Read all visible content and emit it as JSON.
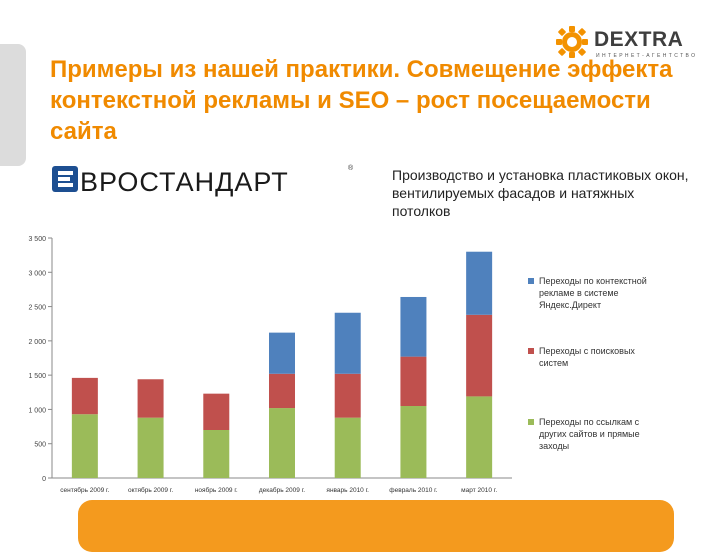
{
  "header": {
    "logo_name": "DEXTRA",
    "logo_tagline": "ИНТЕРНЕТ-АГЕНТСТВО",
    "title": "Примеры из нашей практики. Совмещение эффекта контекстной рекламы и SEO – рост посещаемости сайта"
  },
  "client": {
    "name": "ВРОСТАНДАРТ",
    "description": "Производство и установка пластиковых окон, вентилируемых фасадов и натяжных потолков"
  },
  "colors": {
    "accent": "#f08a00",
    "bar_organic": "#9bbb59",
    "bar_search": "#c0504d",
    "bar_context": "#4f81bd"
  },
  "chart_data": {
    "type": "bar",
    "stacked": true,
    "categories": [
      "сентябрь 2009 г.",
      "октябрь 2009 г.",
      "ноябрь 2009 г.",
      "декабрь 2009 г.",
      "январь 2010 г.",
      "февраль 2010 г.",
      "март 2010 г."
    ],
    "y_ticks": [
      "0",
      "500",
      "1 000",
      "1 500",
      "2 000",
      "2 500",
      "3 000",
      "3 500"
    ],
    "ylim": [
      0,
      3500
    ],
    "grid": false,
    "legend_position": "right",
    "series": [
      {
        "name": "Переходы по ссылкам с других сайтов и прямые заходы",
        "color": "#9bbb59",
        "values": [
          930,
          880,
          700,
          1020,
          880,
          1050,
          1190
        ]
      },
      {
        "name": "Переходы с поисковых систем",
        "color": "#c0504d",
        "values": [
          530,
          560,
          530,
          500,
          640,
          720,
          1190
        ]
      },
      {
        "name": "Переходы по контекстной рекламе в системе Яндекс.Директ",
        "color": "#4f81bd",
        "values": [
          0,
          0,
          0,
          600,
          890,
          870,
          920
        ]
      }
    ]
  }
}
